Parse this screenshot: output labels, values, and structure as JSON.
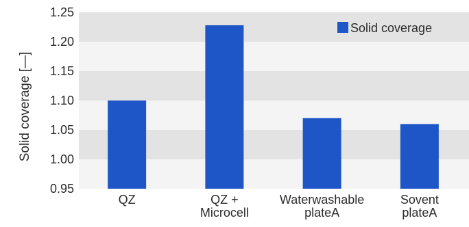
{
  "chart_data": {
    "type": "bar",
    "categories": [
      [
        "QZ"
      ],
      [
        "QZ +",
        "Microcell"
      ],
      [
        "Waterwashable",
        "plateA"
      ],
      [
        "Sovent",
        "plateA"
      ]
    ],
    "series": [
      {
        "name": "Solid coverage",
        "values": [
          1.1,
          1.228,
          1.07,
          1.06
        ],
        "color": "#1f56c7"
      }
    ],
    "ylabel": "Solid coverage [—]",
    "ylim": [
      0.95,
      1.25
    ],
    "yticks": [
      "0.95",
      "1.00",
      "1.05",
      "1.10",
      "1.15",
      "1.20",
      "1.25"
    ],
    "grid": "alternating-bands",
    "band_color": "#e3e3e3",
    "legend_position": "top-right"
  }
}
